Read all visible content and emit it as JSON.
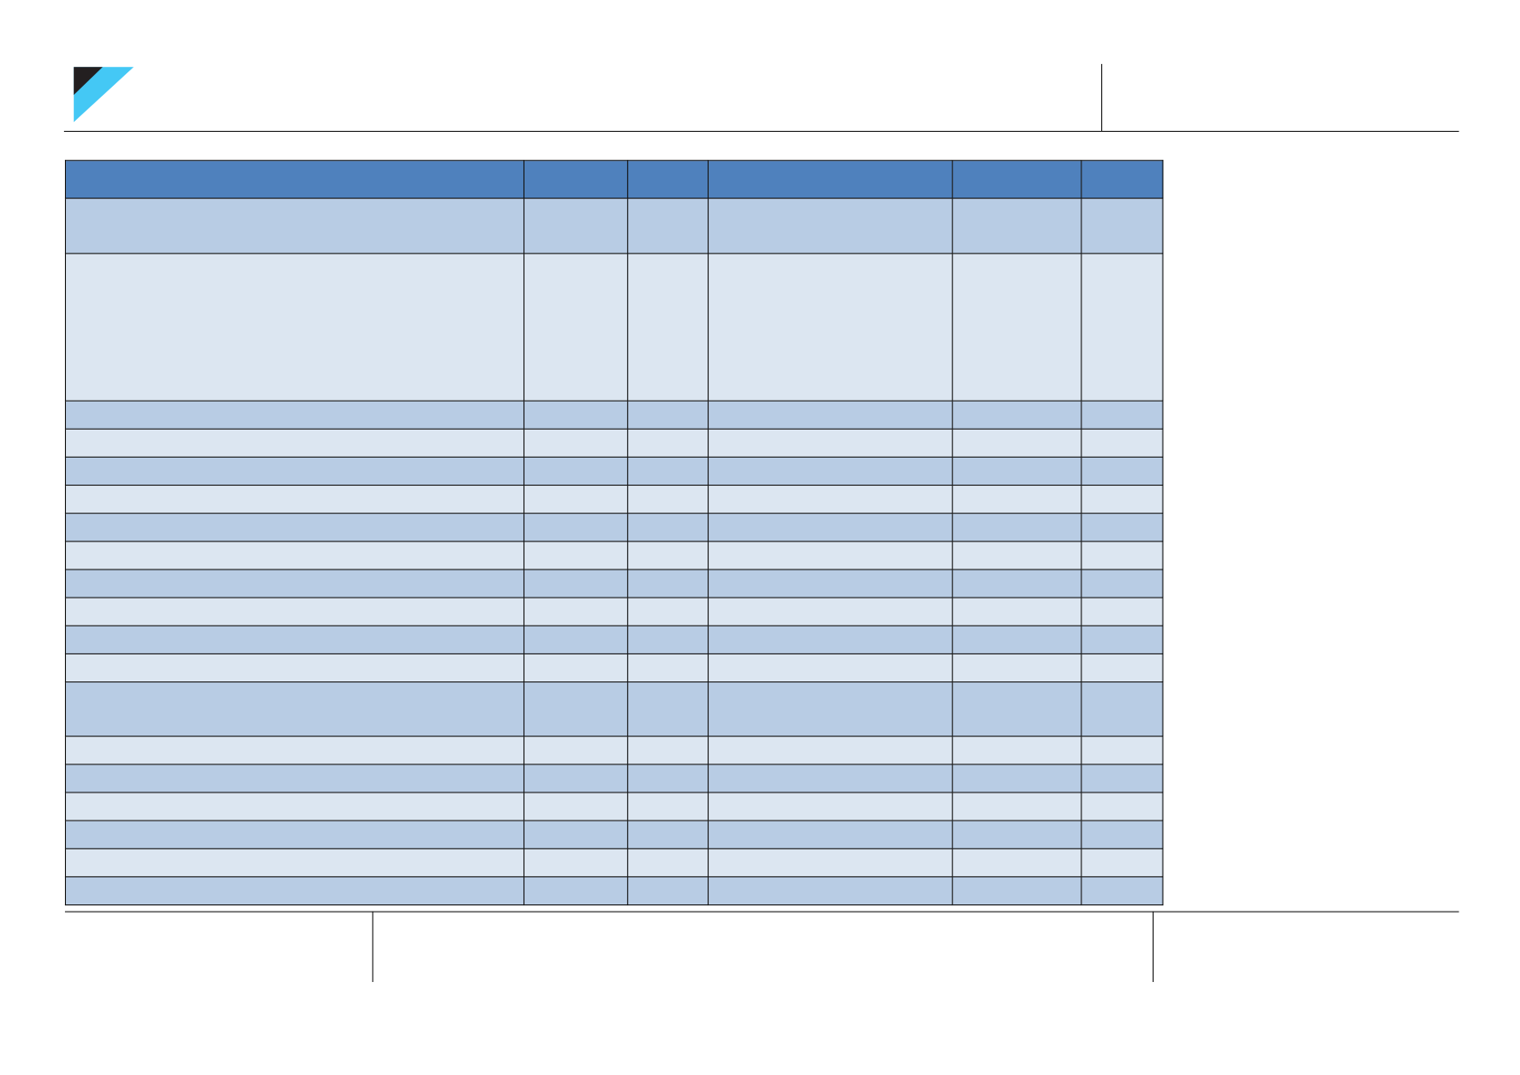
{
  "colors": {
    "logo_dark": "#231f20",
    "logo_cyan": "#44c8f5",
    "header_row": "#4f81bd",
    "row_dark": "#b8cce4",
    "row_light": "#dce6f1",
    "rule": "#111111"
  },
  "table": {
    "headers": [
      "",
      "",
      "",
      "",
      "",
      ""
    ],
    "rows": [
      [
        "",
        "",
        "",
        "",
        "",
        ""
      ],
      [
        "",
        "",
        "",
        "",
        "",
        ""
      ],
      [
        "",
        "",
        "",
        "",
        "",
        ""
      ],
      [
        "",
        "",
        "",
        "",
        "",
        ""
      ],
      [
        "",
        "",
        "",
        "",
        "",
        ""
      ],
      [
        "",
        "",
        "",
        "",
        "",
        ""
      ],
      [
        "",
        "",
        "",
        "",
        "",
        ""
      ],
      [
        "",
        "",
        "",
        "",
        "",
        ""
      ],
      [
        "",
        "",
        "",
        "",
        "",
        ""
      ],
      [
        "",
        "",
        "",
        "",
        "",
        ""
      ],
      [
        "",
        "",
        "",
        "",
        "",
        ""
      ],
      [
        "",
        "",
        "",
        "",
        "",
        ""
      ],
      [
        "",
        "",
        "",
        "",
        "",
        ""
      ],
      [
        "",
        "",
        "",
        "",
        "",
        ""
      ],
      [
        "",
        "",
        "",
        "",
        "",
        ""
      ],
      [
        "",
        "",
        "",
        "",
        "",
        ""
      ],
      [
        "",
        "",
        "",
        "",
        "",
        ""
      ],
      [
        "",
        "",
        "",
        "",
        "",
        ""
      ],
      [
        "",
        "",
        "",
        "",
        "",
        ""
      ]
    ]
  }
}
